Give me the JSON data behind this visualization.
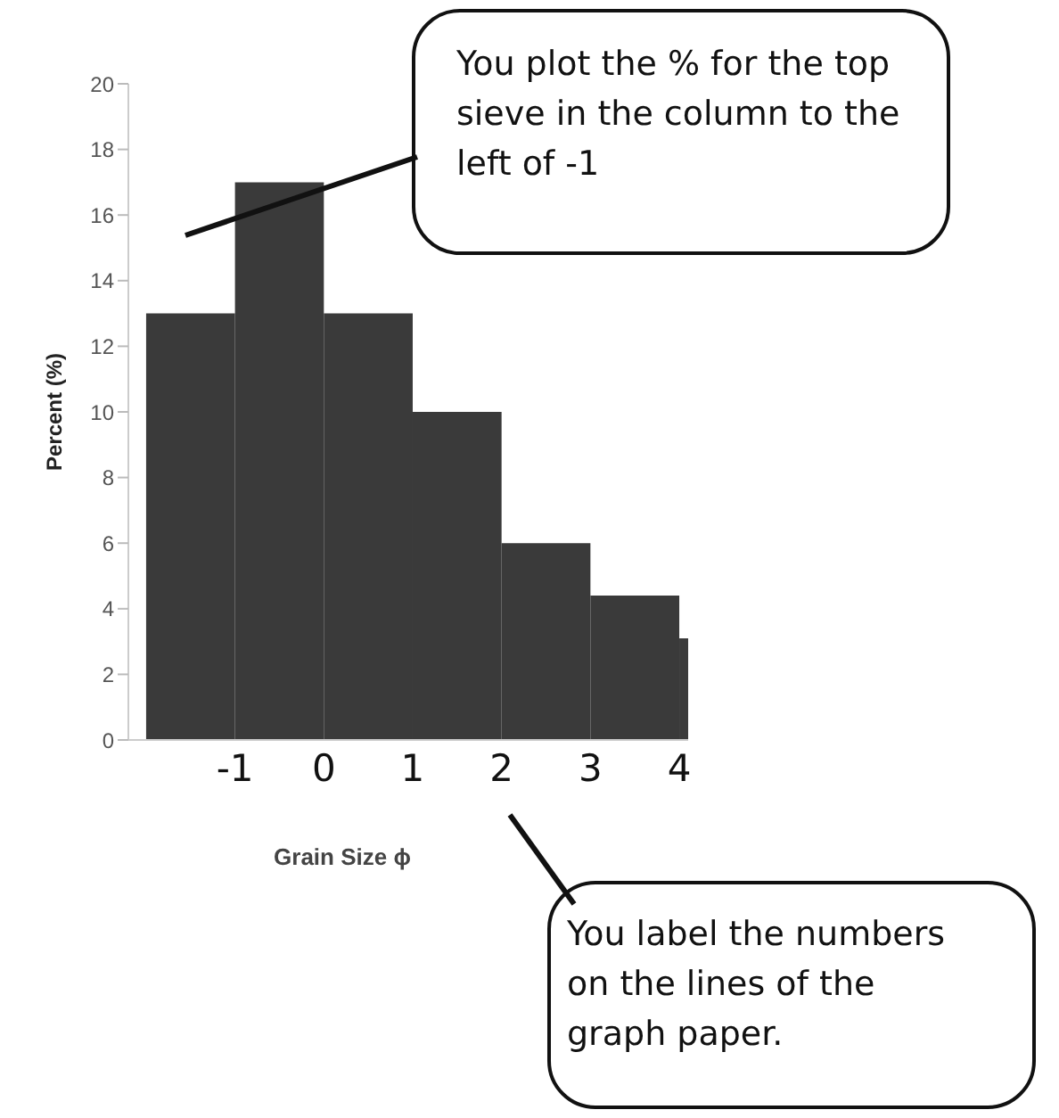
{
  "chart_data": {
    "type": "histogram",
    "xlabel": "Grain Size ϕ",
    "ylabel": "Percent (%)",
    "bins": [
      -2,
      -1,
      0,
      1,
      2,
      3,
      4,
      4.1
    ],
    "values": [
      13,
      17,
      13,
      10,
      6,
      4.4,
      3.1
    ],
    "color": "#3a3a3a",
    "xlim": [
      -2.2,
      4.1
    ],
    "xticks": [
      -1,
      0,
      1,
      2,
      3,
      4
    ],
    "ylim": [
      0,
      20
    ],
    "yticks": [
      0,
      2,
      4,
      6,
      8,
      10,
      12,
      14,
      16,
      18,
      20
    ],
    "grid": false,
    "annotations": [
      "You plot the % for the top sieve in the column to the left of -1",
      "You label the numbers on the lines of the graph paper."
    ]
  }
}
